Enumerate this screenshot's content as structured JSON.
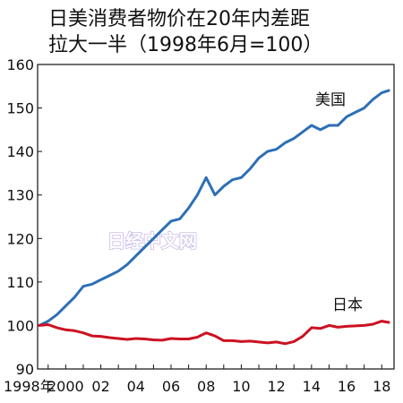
{
  "chart_data": {
    "type": "line",
    "title_lines": [
      "日美消费者物价在20年内差距",
      "拉大一半（1998年6月=100）"
    ],
    "watermark": "日经中文网",
    "ylim": [
      90,
      160
    ],
    "xlim": [
      1998.4,
      2018.7
    ],
    "y_ticks": [
      90,
      100,
      110,
      120,
      130,
      140,
      150,
      160
    ],
    "x_ticks": [
      {
        "year": 1998,
        "label": "1998年"
      },
      {
        "year": 2000,
        "label": "2000"
      },
      {
        "year": 2002,
        "label": "02"
      },
      {
        "year": 2004,
        "label": "04"
      },
      {
        "year": 2006,
        "label": "06"
      },
      {
        "year": 2008,
        "label": "08"
      },
      {
        "year": 2010,
        "label": "10"
      },
      {
        "year": 2012,
        "label": "12"
      },
      {
        "year": 2014,
        "label": "14"
      },
      {
        "year": 2016,
        "label": "16"
      },
      {
        "year": 2018,
        "label": "18"
      }
    ],
    "series": [
      {
        "name": "美国",
        "color": "#2e6fb6",
        "x": [
          1998.5,
          1999.0,
          1999.5,
          2000.0,
          2000.5,
          2001.0,
          2001.5,
          2002.0,
          2002.5,
          2003.0,
          2003.5,
          2004.0,
          2004.5,
          2005.0,
          2005.5,
          2006.0,
          2006.5,
          2007.0,
          2007.5,
          2008.0,
          2008.5,
          2009.0,
          2009.5,
          2010.0,
          2010.5,
          2011.0,
          2011.5,
          2012.0,
          2012.5,
          2013.0,
          2013.5,
          2014.0,
          2014.5,
          2015.0,
          2015.5,
          2016.0,
          2016.5,
          2017.0,
          2017.5,
          2018.0,
          2018.4
        ],
        "values": [
          100.0,
          101.0,
          102.5,
          104.5,
          106.5,
          109.0,
          109.5,
          110.5,
          111.5,
          112.5,
          114.0,
          116.0,
          118.0,
          120.0,
          122.0,
          124.0,
          124.5,
          127.0,
          130.0,
          134.0,
          130.0,
          132.0,
          133.5,
          134.0,
          136.0,
          138.5,
          140.0,
          140.5,
          142.0,
          143.0,
          144.5,
          146.0,
          145.0,
          146.0,
          146.0,
          148.0,
          149.0,
          150.0,
          152.0,
          153.5,
          154.0
        ]
      },
      {
        "name": "日本",
        "color": "#cc1122",
        "x": [
          1998.5,
          1999.0,
          1999.5,
          2000.0,
          2000.5,
          2001.0,
          2001.5,
          2002.0,
          2002.5,
          2003.0,
          2003.5,
          2004.0,
          2004.5,
          2005.0,
          2005.5,
          2006.0,
          2006.5,
          2007.0,
          2007.5,
          2008.0,
          2008.5,
          2009.0,
          2009.5,
          2010.0,
          2010.5,
          2011.0,
          2011.5,
          2012.0,
          2012.5,
          2013.0,
          2013.5,
          2014.0,
          2014.5,
          2015.0,
          2015.5,
          2016.0,
          2016.5,
          2017.0,
          2017.5,
          2018.0,
          2018.4
        ],
        "values": [
          100.0,
          100.2,
          99.5,
          99.0,
          98.8,
          98.3,
          97.6,
          97.5,
          97.2,
          97.0,
          96.8,
          97.0,
          96.9,
          96.7,
          96.6,
          97.0,
          96.9,
          96.9,
          97.3,
          98.3,
          97.6,
          96.5,
          96.5,
          96.3,
          96.4,
          96.2,
          96.0,
          96.2,
          95.8,
          96.3,
          97.5,
          99.5,
          99.3,
          100.0,
          99.6,
          99.8,
          99.9,
          100.0,
          100.3,
          101.0,
          100.7
        ]
      }
    ]
  }
}
